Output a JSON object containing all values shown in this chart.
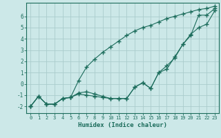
{
  "xlabel": "Humidex (Indice chaleur)",
  "bg_color": "#cce8e8",
  "grid_color": "#aacccc",
  "line_color": "#1a6b5a",
  "xlim": [
    -0.5,
    23.5
  ],
  "ylim": [
    -2.6,
    7.2
  ],
  "xticks": [
    0,
    1,
    2,
    3,
    4,
    5,
    6,
    7,
    8,
    9,
    10,
    11,
    12,
    13,
    14,
    15,
    16,
    17,
    18,
    19,
    20,
    21,
    22,
    23
  ],
  "yticks": [
    -2,
    -1,
    0,
    1,
    2,
    3,
    4,
    5,
    6
  ],
  "line1_x": [
    0,
    1,
    2,
    3,
    4,
    5,
    6,
    7,
    8,
    9,
    10,
    11,
    12,
    13,
    14,
    15,
    16,
    17,
    18,
    19,
    20,
    21,
    22,
    23
  ],
  "line1_y": [
    -2.0,
    -1.1,
    -1.8,
    -1.8,
    -1.3,
    -1.2,
    -0.8,
    -0.7,
    -0.9,
    -1.1,
    -1.3,
    -1.3,
    -1.3,
    -0.3,
    0.1,
    -0.4,
    1.0,
    1.3,
    2.4,
    3.5,
    4.3,
    6.1,
    6.1,
    6.7
  ],
  "line2_x": [
    0,
    1,
    2,
    3,
    4,
    5,
    6,
    7,
    8,
    9,
    10,
    11,
    12,
    13,
    14,
    15,
    16,
    17,
    18,
    19,
    20,
    21,
    22,
    23
  ],
  "line2_y": [
    -2.0,
    -1.1,
    -1.8,
    -1.8,
    -1.3,
    -1.2,
    -0.9,
    -1.0,
    -1.1,
    -1.2,
    -1.3,
    -1.3,
    -1.3,
    -0.3,
    0.1,
    -0.4,
    1.0,
    1.6,
    2.3,
    3.5,
    4.4,
    5.0,
    5.3,
    6.5
  ],
  "line3_x": [
    0,
    1,
    2,
    3,
    4,
    5,
    6,
    7,
    8,
    9,
    10,
    11,
    12,
    13,
    14,
    15,
    16,
    17,
    18,
    19,
    20,
    21,
    22,
    23
  ],
  "line3_y": [
    -2.0,
    -1.1,
    -1.8,
    -1.8,
    -1.3,
    -1.2,
    0.3,
    1.5,
    2.2,
    2.8,
    3.3,
    3.8,
    4.3,
    4.7,
    5.0,
    5.2,
    5.5,
    5.8,
    6.0,
    6.2,
    6.4,
    6.6,
    6.7,
    6.9
  ]
}
